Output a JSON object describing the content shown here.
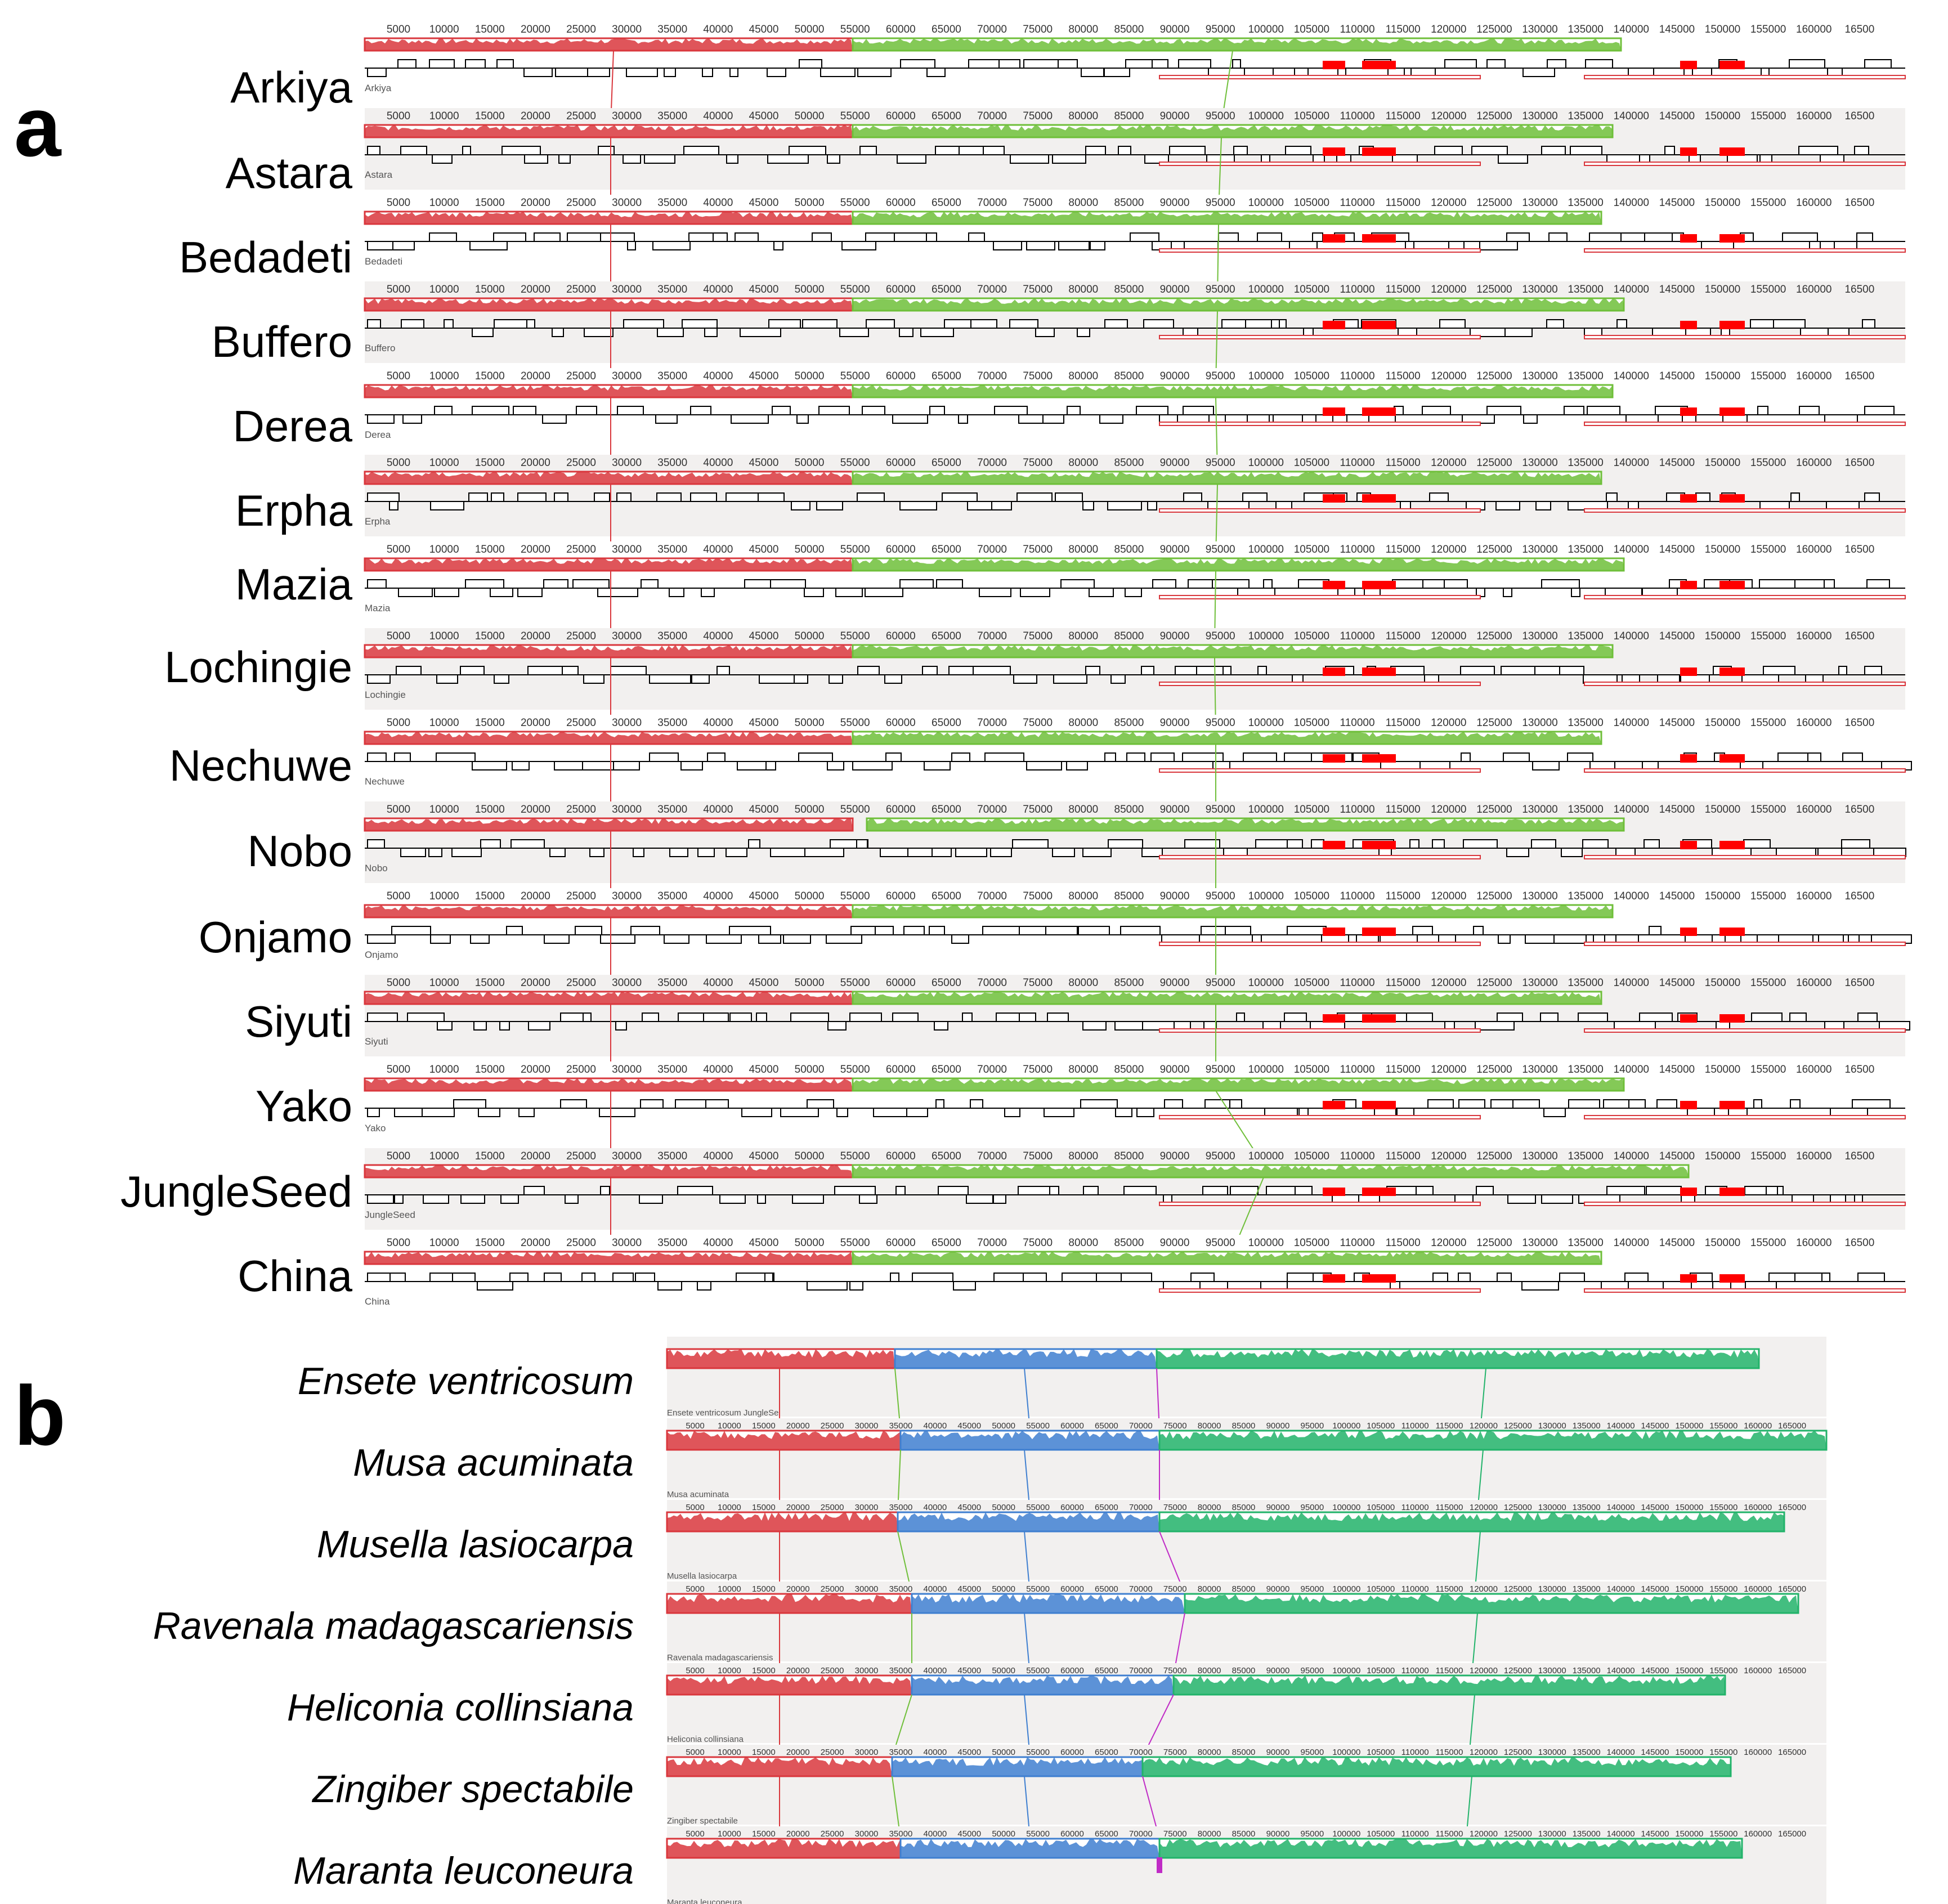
{
  "panel_a": {
    "letter": "a",
    "rows": [
      {
        "label": "Arkiya",
        "small": "Arkiya"
      },
      {
        "label": "Astara",
        "small": "Astara"
      },
      {
        "label": "Bedadeti",
        "small": "Bedadeti"
      },
      {
        "label": "Buffero",
        "small": "Buffero"
      },
      {
        "label": "Derea",
        "small": "Derea"
      },
      {
        "label": "Erpha",
        "small": "Erpha"
      },
      {
        "label": "Mazia",
        "small": "Mazia"
      },
      {
        "label": "Lochingie",
        "small": "Lochingie"
      },
      {
        "label": "Nechuwe",
        "small": "Nechuwe"
      },
      {
        "label": "Nobo",
        "small": "Nobo"
      },
      {
        "label": "Onjamo",
        "small": "Onjamo"
      },
      {
        "label": "Siyuti",
        "small": "Siyuti"
      },
      {
        "label": "Yako",
        "small": "Yako"
      },
      {
        "label": "JungleSeed",
        "small": "JungleSeed"
      },
      {
        "label": "China",
        "small": "China"
      }
    ],
    "ticks": [
      "5000",
      "10000",
      "15000",
      "20000",
      "25000",
      "30000",
      "35000",
      "40000",
      "45000",
      "50000",
      "55000",
      "60000",
      "65000",
      "70000",
      "75000",
      "80000",
      "85000",
      "90000",
      "95000",
      "100000",
      "105000",
      "110000",
      "115000",
      "120000",
      "125000",
      "130000",
      "135000",
      "140000",
      "145000",
      "150000",
      "155000",
      "160000",
      "16500"
    ]
  },
  "panel_b": {
    "letter": "b",
    "rows": [
      {
        "label": "Ensete ventricosum",
        "small": "Ensete ventricosum JungleSe"
      },
      {
        "label": "Musa acuminata",
        "small": "Musa acuminata"
      },
      {
        "label": "Musella lasiocarpa",
        "small": "Musella lasiocarpa"
      },
      {
        "label": "Ravenala madagascariensis",
        "small": "Ravenala madagascariensis"
      },
      {
        "label": "Heliconia collinsiana",
        "small": "Heliconia collinsiana"
      },
      {
        "label": "Zingiber spectabile",
        "small": "Zingiber spectabile"
      },
      {
        "label": "Maranta leuconeura",
        "small": "Maranta leuconeura"
      }
    ],
    "ticks": [
      "5000",
      "10000",
      "15000",
      "20000",
      "25000",
      "30000",
      "35000",
      "40000",
      "45000",
      "50000",
      "55000",
      "60000",
      "65000",
      "70000",
      "75000",
      "80000",
      "85000",
      "90000",
      "95000",
      "100000",
      "105000",
      "110000",
      "115000",
      "120000",
      "125000",
      "130000",
      "135000",
      "140000",
      "145000",
      "150000",
      "155000",
      "160000",
      "165000"
    ]
  },
  "colors": {
    "red_block": "#d9373d",
    "green_block": "#6fbf3a",
    "blue_block": "#3f7fd0",
    "teal_block": "#22b36a",
    "magenta_block": "#c02bc6",
    "gene_fill": "#ff0000",
    "lane_bg": "#f2f0ef"
  }
}
